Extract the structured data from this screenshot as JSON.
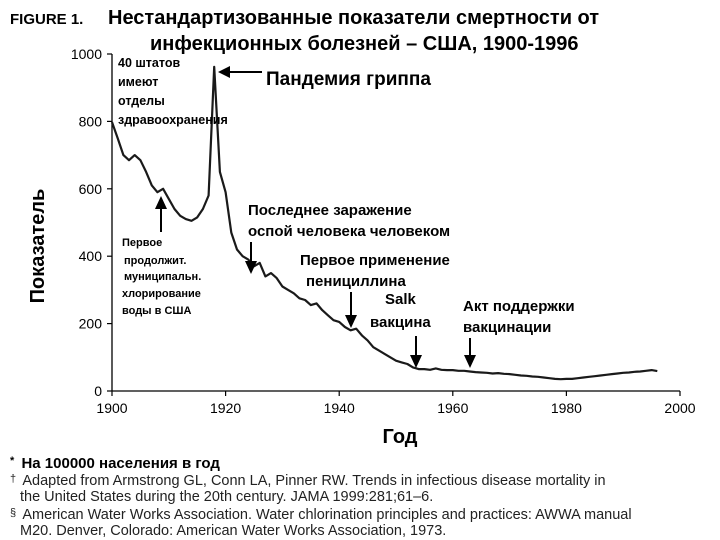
{
  "figure_label": "FIGURE 1.",
  "chart_data": {
    "type": "line",
    "title_line1": "Нестандартизованные показатели смертности от",
    "title_line2": "инфекционных болезней – США, 1900-1996",
    "xlabel": "Год",
    "ylabel": "Показатель",
    "xlim": [
      1900,
      2000
    ],
    "ylim": [
      0,
      1000
    ],
    "x_ticks": [
      "1900",
      "1920",
      "1940",
      "1960",
      "1980",
      "2000"
    ],
    "y_ticks": [
      "0",
      "200",
      "400",
      "600",
      "800",
      "1000"
    ],
    "grid": false,
    "series": [
      {
        "color": "#1a1a1a",
        "points": [
          [
            1900,
            798
          ],
          [
            1901,
            750
          ],
          [
            1902,
            700
          ],
          [
            1903,
            685
          ],
          [
            1904,
            700
          ],
          [
            1905,
            685
          ],
          [
            1906,
            650
          ],
          [
            1907,
            610
          ],
          [
            1908,
            590
          ],
          [
            1909,
            600
          ],
          [
            1910,
            570
          ],
          [
            1911,
            540
          ],
          [
            1912,
            520
          ],
          [
            1913,
            510
          ],
          [
            1914,
            505
          ],
          [
            1915,
            515
          ],
          [
            1916,
            540
          ],
          [
            1917,
            580
          ],
          [
            1918,
            962
          ],
          [
            1919,
            650
          ],
          [
            1920,
            590
          ],
          [
            1921,
            470
          ],
          [
            1922,
            420
          ],
          [
            1923,
            400
          ],
          [
            1924,
            390
          ],
          [
            1925,
            370
          ],
          [
            1926,
            380
          ],
          [
            1927,
            340
          ],
          [
            1928,
            350
          ],
          [
            1929,
            335
          ],
          [
            1930,
            310
          ],
          [
            1931,
            300
          ],
          [
            1932,
            290
          ],
          [
            1933,
            275
          ],
          [
            1934,
            270
          ],
          [
            1935,
            255
          ],
          [
            1936,
            260
          ],
          [
            1937,
            240
          ],
          [
            1938,
            225
          ],
          [
            1939,
            210
          ],
          [
            1940,
            205
          ],
          [
            1941,
            190
          ],
          [
            1942,
            180
          ],
          [
            1943,
            185
          ],
          [
            1944,
            165
          ],
          [
            1945,
            150
          ],
          [
            1946,
            130
          ],
          [
            1947,
            120
          ],
          [
            1948,
            110
          ],
          [
            1949,
            100
          ],
          [
            1950,
            90
          ],
          [
            1951,
            85
          ],
          [
            1952,
            80
          ],
          [
            1953,
            70
          ],
          [
            1954,
            65
          ],
          [
            1955,
            65
          ],
          [
            1956,
            63
          ],
          [
            1957,
            67
          ],
          [
            1958,
            63
          ],
          [
            1959,
            62
          ],
          [
            1960,
            62
          ],
          [
            1961,
            60
          ],
          [
            1962,
            60
          ],
          [
            1963,
            58
          ],
          [
            1964,
            56
          ],
          [
            1965,
            55
          ],
          [
            1966,
            54
          ],
          [
            1967,
            52
          ],
          [
            1968,
            53
          ],
          [
            1969,
            51
          ],
          [
            1970,
            50
          ],
          [
            1971,
            48
          ],
          [
            1972,
            46
          ],
          [
            1973,
            45
          ],
          [
            1974,
            43
          ],
          [
            1975,
            42
          ],
          [
            1976,
            40
          ],
          [
            1977,
            38
          ],
          [
            1978,
            36
          ],
          [
            1979,
            35
          ],
          [
            1980,
            36
          ],
          [
            1981,
            36
          ],
          [
            1982,
            38
          ],
          [
            1983,
            40
          ],
          [
            1984,
            42
          ],
          [
            1985,
            44
          ],
          [
            1986,
            46
          ],
          [
            1987,
            48
          ],
          [
            1988,
            50
          ],
          [
            1989,
            52
          ],
          [
            1990,
            54
          ],
          [
            1991,
            55
          ],
          [
            1992,
            57
          ],
          [
            1993,
            58
          ],
          [
            1994,
            60
          ],
          [
            1995,
            62
          ],
          [
            1996,
            59
          ]
        ]
      }
    ],
    "annotations": [
      {
        "lines": [
          "40 штатов",
          "имеют",
          "отделы",
          "здравоохранения"
        ],
        "arrow_x": 1900,
        "arrow_y": 810
      },
      {
        "lines": [
          "Пандемия гриппа"
        ],
        "arrow_x": 1918,
        "arrow_y": 960
      },
      {
        "lines": [
          "Первое",
          "продолжит.",
          "муниципальн.",
          "хлорирование",
          "воды в США"
        ],
        "arrow_x": 1908,
        "arrow_y": 590
      },
      {
        "lines": [
          "Последнее заражение",
          "оспой человека человеком"
        ],
        "arrow_x": 1924,
        "arrow_y": 390
      },
      {
        "lines": [
          "Первое применение",
          "пенициллина"
        ],
        "arrow_x": 1942,
        "arrow_y": 190
      },
      {
        "lines": [
          "Salk",
          "вакцина"
        ],
        "arrow_x": 1955,
        "arrow_y": 70
      },
      {
        "lines": [
          "Акт поддержки",
          "вакцинации"
        ],
        "arrow_x": 1962,
        "arrow_y": 70
      }
    ]
  },
  "footnotes": {
    "star": "*",
    "star_text": "На 100000 населения в год",
    "dagger": "†",
    "dagger_line1": "Adapted from Armstrong GL, Conn LA, Pinner RW. Trends in infectious disease mortality in",
    "dagger_line2": "the United States during the 20th century. JAMA 1999:281;61–6.",
    "section": "§",
    "section_line1": "American Water Works Association. Water chlorination principles and practices: AWWA manual",
    "section_line2": "M20. Denver, Colorado: American Water Works Association, 1973."
  }
}
